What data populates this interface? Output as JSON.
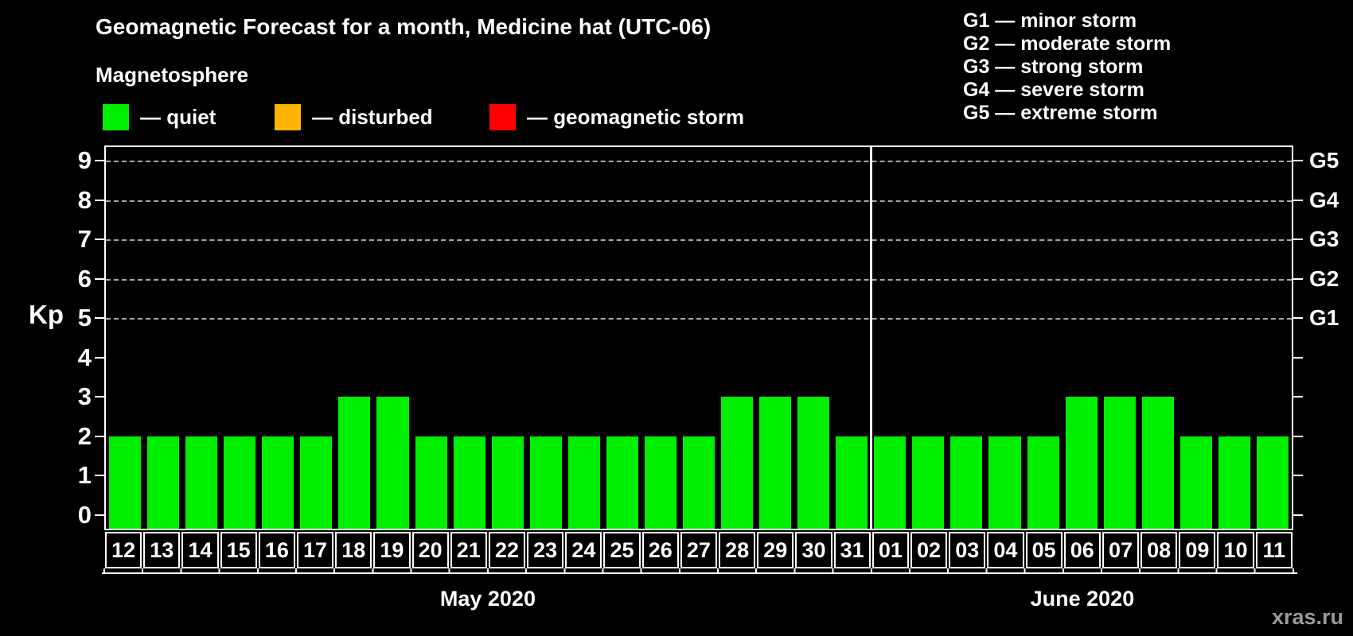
{
  "header": {
    "title": "Geomagnetic Forecast for a month, Medicine hat (UTC-06)",
    "subtitle": "Magnetosphere",
    "legend": [
      {
        "name": "quiet",
        "label": "— quiet",
        "color": "#00ee00"
      },
      {
        "name": "disturbed",
        "label": "— disturbed",
        "color": "#ffb400"
      },
      {
        "name": "storm",
        "label": "— geomagnetic storm",
        "color": "#ff0000"
      }
    ],
    "g_legend": [
      "G1 — minor storm",
      "G2 — moderate storm",
      "G3 — strong storm",
      "G4 — severe storm",
      "G5 — extreme storm"
    ]
  },
  "chart_data": {
    "type": "bar",
    "title": "Geomagnetic Forecast for a month, Medicine hat (UTC-06)",
    "ylabel": "Kp",
    "ylim": [
      0,
      9
    ],
    "yticks": [
      0,
      1,
      2,
      3,
      4,
      5,
      6,
      7,
      8,
      9
    ],
    "grid_dashed_levels": [
      5,
      6,
      7,
      8,
      9
    ],
    "right_axis_labels": [
      {
        "label": "G1",
        "kp": 5
      },
      {
        "label": "G2",
        "kp": 6
      },
      {
        "label": "G3",
        "kp": 7
      },
      {
        "label": "G4",
        "kp": 8
      },
      {
        "label": "G5",
        "kp": 9
      }
    ],
    "bar_status": "quiet",
    "months": [
      {
        "label": "May 2020",
        "categories": [
          "12",
          "13",
          "14",
          "15",
          "16",
          "17",
          "18",
          "19",
          "20",
          "21",
          "22",
          "23",
          "24",
          "25",
          "26",
          "27",
          "28",
          "29",
          "30",
          "31"
        ],
        "values": [
          2,
          2,
          2,
          2,
          2,
          2,
          3,
          3,
          2,
          2,
          2,
          2,
          2,
          2,
          2,
          2,
          3,
          3,
          3,
          2
        ]
      },
      {
        "label": "June 2020",
        "categories": [
          "01",
          "02",
          "03",
          "04",
          "05",
          "06",
          "07",
          "08",
          "09",
          "10",
          "11"
        ],
        "values": [
          2,
          2,
          2,
          2,
          2,
          3,
          3,
          3,
          2,
          2,
          2
        ]
      }
    ]
  },
  "colors": {
    "quiet": "#00ee00",
    "disturbed": "#ffb400",
    "storm": "#ff0000",
    "grid": "#a8a8a8",
    "axis": "#ffffff",
    "watermark": "#9a9a9a"
  },
  "watermark": "xras.ru"
}
